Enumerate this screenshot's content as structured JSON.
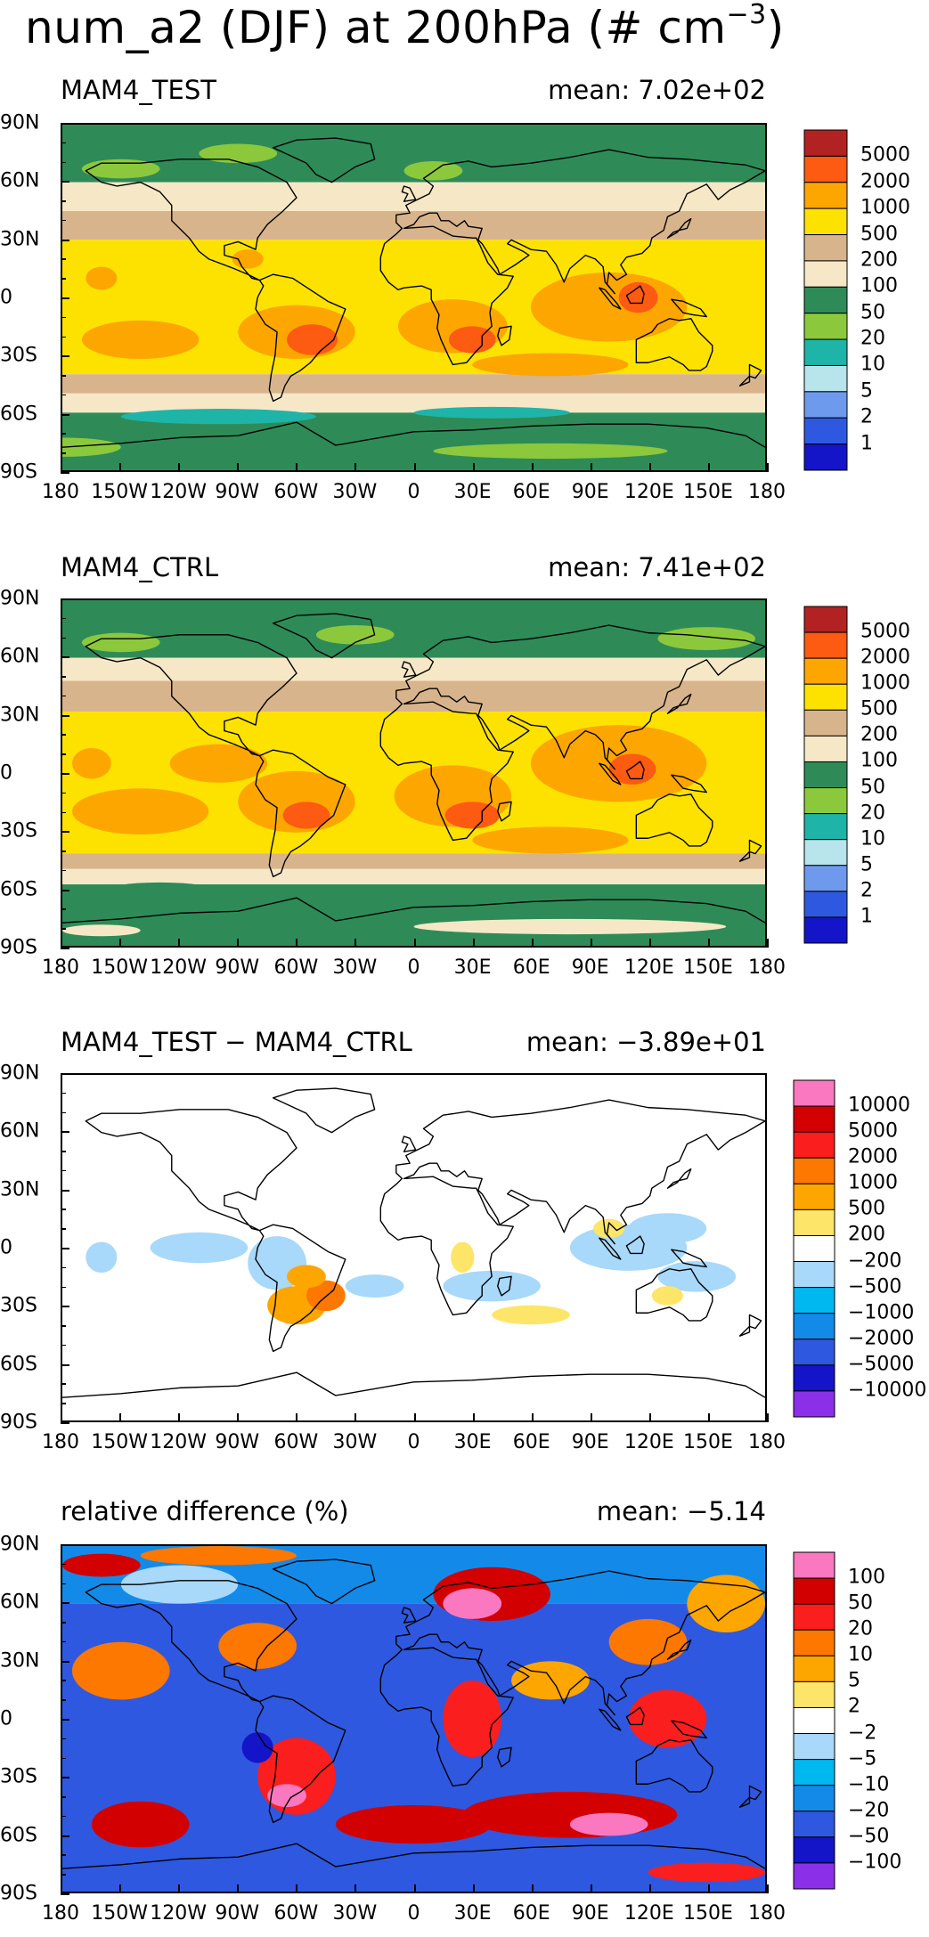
{
  "page": {
    "title_main": "num_a2 (DJF) at 200hPa (# cm",
    "title_exp": "−3",
    "title_close": ")"
  },
  "colors": {
    "abs": [
      "#1414c8",
      "#2f58e0",
      "#6e9aee",
      "#b8e4ec",
      "#1fb4a8",
      "#8cc83c",
      "#2e8b57",
      "#f6e8c6",
      "#d8b48c",
      "#fde200",
      "#fda600",
      "#fd5a12",
      "#b22222"
    ],
    "diff": [
      "#8b30e8",
      "#1414c8",
      "#2f58e0",
      "#148ae8",
      "#00b8f0",
      "#a8d8fa",
      "#ffffff",
      "#fde56a",
      "#fda600",
      "#fd7800",
      "#fa1e1e",
      "#d20000",
      "#fa78c0"
    ]
  },
  "chart_data": [
    {
      "type": "heatmap",
      "title": "MAM4_TEST",
      "mean_label": "mean:",
      "mean_value": "7.02e+02",
      "lat_ticks": [
        "90N",
        "60N",
        "30N",
        "0",
        "30S",
        "60S",
        "90S"
      ],
      "lon_ticks": [
        "180",
        "150W",
        "120W",
        "90W",
        "60W",
        "30W",
        "0",
        "30E",
        "60E",
        "90E",
        "120E",
        "150E",
        "180"
      ],
      "levels": [
        "5000",
        "2000",
        "1000",
        "500",
        "200",
        "100",
        "50",
        "20",
        "10",
        "5",
        "2",
        "1"
      ],
      "zonal_bands": [
        {
          "lat_min": 60,
          "lat_max": 90,
          "value": 50
        },
        {
          "lat_min": 45,
          "lat_max": 60,
          "value": 100
        },
        {
          "lat_min": 30,
          "lat_max": 45,
          "value": 200
        },
        {
          "lat_min": -40,
          "lat_max": 30,
          "value": 500
        },
        {
          "lat_min": -50,
          "lat_max": -40,
          "value": 200
        },
        {
          "lat_min": -60,
          "lat_max": -50,
          "value": 100
        },
        {
          "lat_min": -90,
          "lat_max": -60,
          "value": 50
        }
      ]
    },
    {
      "type": "heatmap",
      "title": "MAM4_CTRL",
      "mean_label": "mean:",
      "mean_value": "7.41e+02",
      "lat_ticks": [
        "90N",
        "60N",
        "30N",
        "0",
        "30S",
        "60S",
        "90S"
      ],
      "lon_ticks": [
        "180",
        "150W",
        "120W",
        "90W",
        "60W",
        "30W",
        "0",
        "30E",
        "60E",
        "90E",
        "120E",
        "150E",
        "180"
      ],
      "levels": [
        "5000",
        "2000",
        "1000",
        "500",
        "200",
        "100",
        "50",
        "20",
        "10",
        "5",
        "2",
        "1"
      ],
      "zonal_bands": [
        {
          "lat_min": 60,
          "lat_max": 90,
          "value": 50
        },
        {
          "lat_min": 48,
          "lat_max": 60,
          "value": 100
        },
        {
          "lat_min": 32,
          "lat_max": 48,
          "value": 200
        },
        {
          "lat_min": -42,
          "lat_max": 32,
          "value": 500
        },
        {
          "lat_min": -50,
          "lat_max": -42,
          "value": 200
        },
        {
          "lat_min": -58,
          "lat_max": -50,
          "value": 100
        },
        {
          "lat_min": -90,
          "lat_max": -58,
          "value": 50
        }
      ]
    },
    {
      "type": "heatmap",
      "title": "MAM4_TEST − MAM4_CTRL",
      "mean_label": "mean:",
      "mean_value": "−3.89e+01",
      "lat_ticks": [
        "90N",
        "60N",
        "30N",
        "0",
        "30S",
        "60S",
        "90S"
      ],
      "lon_ticks": [
        "180",
        "150W",
        "120W",
        "90W",
        "60W",
        "30W",
        "0",
        "30E",
        "60E",
        "90E",
        "120E",
        "150E",
        "180"
      ],
      "levels": [
        "10000",
        "5000",
        "2000",
        "1000",
        "500",
        "200",
        "−200",
        "−500",
        "−1000",
        "−2000",
        "−5000",
        "−10000"
      ]
    },
    {
      "type": "heatmap",
      "title": "relative difference (%)",
      "mean_label": "mean:",
      "mean_value": "−5.14",
      "lat_ticks": [
        "90N",
        "60N",
        "30N",
        "0",
        "30S",
        "60S",
        "90S"
      ],
      "lon_ticks": [
        "180",
        "150W",
        "120W",
        "90W",
        "60W",
        "30W",
        "0",
        "30E",
        "60E",
        "90E",
        "120E",
        "150E",
        "180"
      ],
      "levels": [
        "100",
        "50",
        "20",
        "10",
        "5",
        "2",
        "−2",
        "−5",
        "−10",
        "−20",
        "−50",
        "−100"
      ]
    }
  ]
}
